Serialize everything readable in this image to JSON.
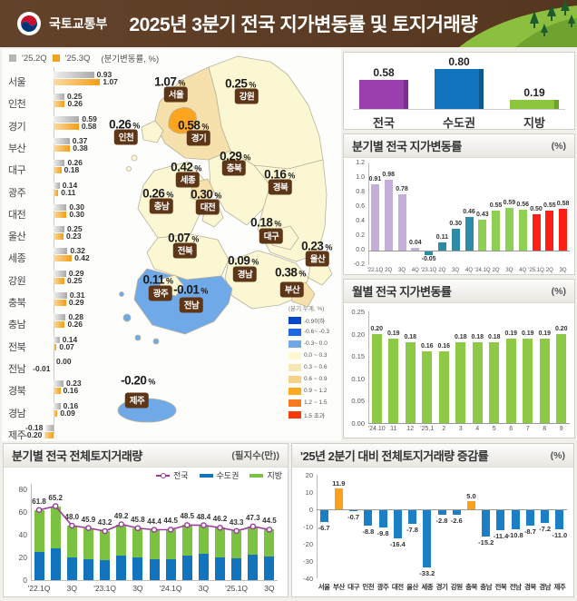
{
  "header": {
    "agency": "국토교통부",
    "title": "2025년 3분기 전국 지가변동률 및 토지거래량"
  },
  "map": {
    "regions": [
      {
        "name": "서울",
        "value": "1.07"
      },
      {
        "name": "강원",
        "value": "0.25"
      },
      {
        "name": "인천",
        "value": "0.26"
      },
      {
        "name": "경기",
        "value": "0.58"
      },
      {
        "name": "충북",
        "value": "0.29"
      },
      {
        "name": "세종",
        "value": "0.42"
      },
      {
        "name": "경북",
        "value": "0.16"
      },
      {
        "name": "충남",
        "value": "0.26"
      },
      {
        "name": "대전",
        "value": "0.30"
      },
      {
        "name": "전북",
        "value": "0.07"
      },
      {
        "name": "대구",
        "value": "0.18"
      },
      {
        "name": "울산",
        "value": "0.23"
      },
      {
        "name": "경남",
        "value": "0.09"
      },
      {
        "name": "부산",
        "value": "0.38"
      },
      {
        "name": "광주",
        "value": "0.11"
      },
      {
        "name": "전남",
        "value": "-0.01"
      },
      {
        "name": "제주",
        "value": "-0.20"
      }
    ],
    "legend": {
      "title": "(분기 누계, %)",
      "items": [
        {
          "label": "-0.9이하",
          "color": "#0646c8"
        },
        {
          "label": "-0.6~ -0.3",
          "color": "#1e68e6"
        },
        {
          "label": "-0.3~ 0.0",
          "color": "#6fa9e8"
        },
        {
          "label": "0.0 ~ 0.3",
          "color": "#fdf8d2"
        },
        {
          "label": "0.3 ~ 0.6",
          "color": "#f8e7b4"
        },
        {
          "label": "0.6 ~ 0.9",
          "color": "#f5d287"
        },
        {
          "label": "0.9 ~ 1.2",
          "color": "#feaa1e"
        },
        {
          "label": "1.2 ~ 1.5",
          "color": "#f47a1f"
        },
        {
          "label": "1.5 초과",
          "color": "#f63a0a"
        }
      ]
    }
  },
  "chart_data": [
    {
      "id": "regional",
      "type": "bar",
      "orientation": "horizontal",
      "unit": "(분기변동률, %)",
      "categories": [
        "서울",
        "인천",
        "경기",
        "부산",
        "대구",
        "광주",
        "대전",
        "울산",
        "세종",
        "강원",
        "충북",
        "충남",
        "전북",
        "전남",
        "경북",
        "경남",
        "제주"
      ],
      "series": [
        {
          "name": "'25.2Q",
          "color": "#b5b5b5",
          "values": [
            0.93,
            0.25,
            0.59,
            0.37,
            0.26,
            0.14,
            0.3,
            0.25,
            0.32,
            0.29,
            0.31,
            0.28,
            0.14,
            0.0,
            0.23,
            0.16,
            -0.18
          ]
        },
        {
          "name": "'25.3Q",
          "color": "#f7a21e",
          "values": [
            1.07,
            0.26,
            0.58,
            0.38,
            0.18,
            0.11,
            0.3,
            0.23,
            0.42,
            0.25,
            0.29,
            0.26,
            0.07,
            -0.01,
            0.16,
            0.09,
            -0.2
          ]
        }
      ]
    },
    {
      "id": "summary",
      "type": "bar",
      "categories": [
        "전국",
        "수도권",
        "지방"
      ],
      "values": [
        0.58,
        0.8,
        0.19
      ],
      "colors": [
        "#9c3fae",
        "#1274bd",
        "#8cc63f"
      ],
      "edge_colors": [
        "#7c2f8d",
        "#0c578f",
        "#6da32c"
      ]
    },
    {
      "id": "quarterly",
      "type": "bar",
      "title": "분기별 전국 지가변동률",
      "unit": "(%)",
      "ylim": [
        -0.2,
        1.2
      ],
      "yticks": [
        1.2,
        1.0,
        0.8,
        0.6,
        0.4,
        0.2,
        0.0,
        -0.2
      ],
      "categories": [
        "'22.1Q",
        "2Q",
        "3Q",
        "4Q",
        "'23.1Q",
        "2Q",
        "3Q",
        "4Q",
        "'24.1Q",
        "2Q",
        "3Q",
        "4Q",
        "'25.1Q",
        "2Q",
        "3Q"
      ],
      "values": [
        0.91,
        0.98,
        0.78,
        0.04,
        -0.05,
        0.11,
        0.3,
        0.46,
        0.43,
        0.55,
        0.59,
        0.56,
        0.5,
        0.55,
        0.58
      ],
      "bar_colors": [
        "#c4afdb",
        "#c4afdb",
        "#c4afdb",
        "#c4afdb",
        "#2d8ba6",
        "#2d8ba6",
        "#2d8ba6",
        "#2d8ba6",
        "#8ed053",
        "#8ed053",
        "#8ed053",
        "#8ed053",
        "#fe1f17",
        "#fe1f17",
        "#fe1f17"
      ]
    },
    {
      "id": "monthly",
      "type": "bar",
      "title": "월별 전국 지가변동률",
      "unit": "(%)",
      "ylim": [
        0,
        0.25
      ],
      "yticks": [
        0.25,
        0.2,
        0.15,
        0.1,
        0.05,
        0.0
      ],
      "categories": [
        "'24.10",
        "11",
        "12",
        "'25.1",
        "2",
        "3",
        "4",
        "5",
        "6",
        "7",
        "8",
        "9"
      ],
      "values": [
        0.2,
        0.19,
        0.18,
        0.16,
        0.16,
        0.18,
        0.18,
        0.18,
        0.19,
        0.19,
        0.19,
        0.2
      ],
      "bar_color": "#8dc944"
    },
    {
      "id": "volume",
      "type": "stacked_bar_line",
      "title": "분기별 전국 전체토지거래량",
      "unit": "(필지수(만))",
      "ylim": [
        0,
        80
      ],
      "yticks": [
        80,
        60,
        40,
        20,
        0
      ],
      "legend": [
        {
          "name": "전국",
          "color": "#9b3a9b",
          "style": "line"
        },
        {
          "name": "수도권",
          "color": "#1274bd",
          "style": "bar"
        },
        {
          "name": "지방",
          "color": "#7cc242",
          "style": "bar"
        }
      ],
      "categories": [
        "'22.1Q",
        "2Q",
        "3Q",
        "4Q",
        "'23.1Q",
        "2Q",
        "3Q",
        "4Q",
        "'24.1Q",
        "2Q",
        "3Q",
        "4Q",
        "'25.1Q",
        "2Q",
        "3Q"
      ],
      "xtick_labels": [
        "'22.1Q",
        "",
        "3Q",
        "",
        "'23.1Q",
        "",
        "3Q",
        "",
        "'24.1Q",
        "",
        "3Q",
        "",
        "'25.1Q",
        "",
        "3Q"
      ],
      "series": [
        {
          "name": "전국",
          "values": [
            61.8,
            65.2,
            48.0,
            45.9,
            43.2,
            49.2,
            45.8,
            44.4,
            44.5,
            48.5,
            48.4,
            46.2,
            43.3,
            47.3,
            44.5
          ]
        },
        {
          "name": "수도권",
          "values": [
            25.2,
            28.0,
            20.1,
            18.2,
            17.6,
            21.3,
            19.9,
            18.6,
            18.1,
            21.6,
            23.2,
            20.2,
            19.6,
            22.1,
            21.0
          ]
        },
        {
          "name": "지방",
          "values": [
            36.6,
            37.2,
            27.9,
            27.7,
            25.6,
            27.9,
            25.9,
            25.8,
            26.4,
            26.9,
            25.2,
            26.0,
            23.7,
            25.2,
            23.5
          ]
        }
      ]
    },
    {
      "id": "change",
      "type": "bar",
      "title": "'25년 2분기 대비 전체토지거래량 증감률",
      "unit": "(%)",
      "ylim": [
        -40,
        20
      ],
      "yticks": [
        20,
        10,
        0,
        -10,
        -20,
        -30,
        -40
      ],
      "categories": [
        "서울",
        "부산",
        "대구",
        "인천",
        "광주",
        "대전",
        "울산",
        "세종",
        "경기",
        "강원",
        "충북",
        "충남",
        "전북",
        "전남",
        "경북",
        "경남",
        "제주"
      ],
      "values": [
        -6.7,
        11.9,
        -0.7,
        -8.8,
        -9.8,
        -16.4,
        -7.8,
        -33.2,
        -2.8,
        -2.6,
        5.0,
        -15.2,
        -11.4,
        -10.8,
        -8.7,
        -7.2,
        -11.0
      ],
      "positive_color": "#f9a11b",
      "negative_color": "#1a7fc4"
    }
  ]
}
